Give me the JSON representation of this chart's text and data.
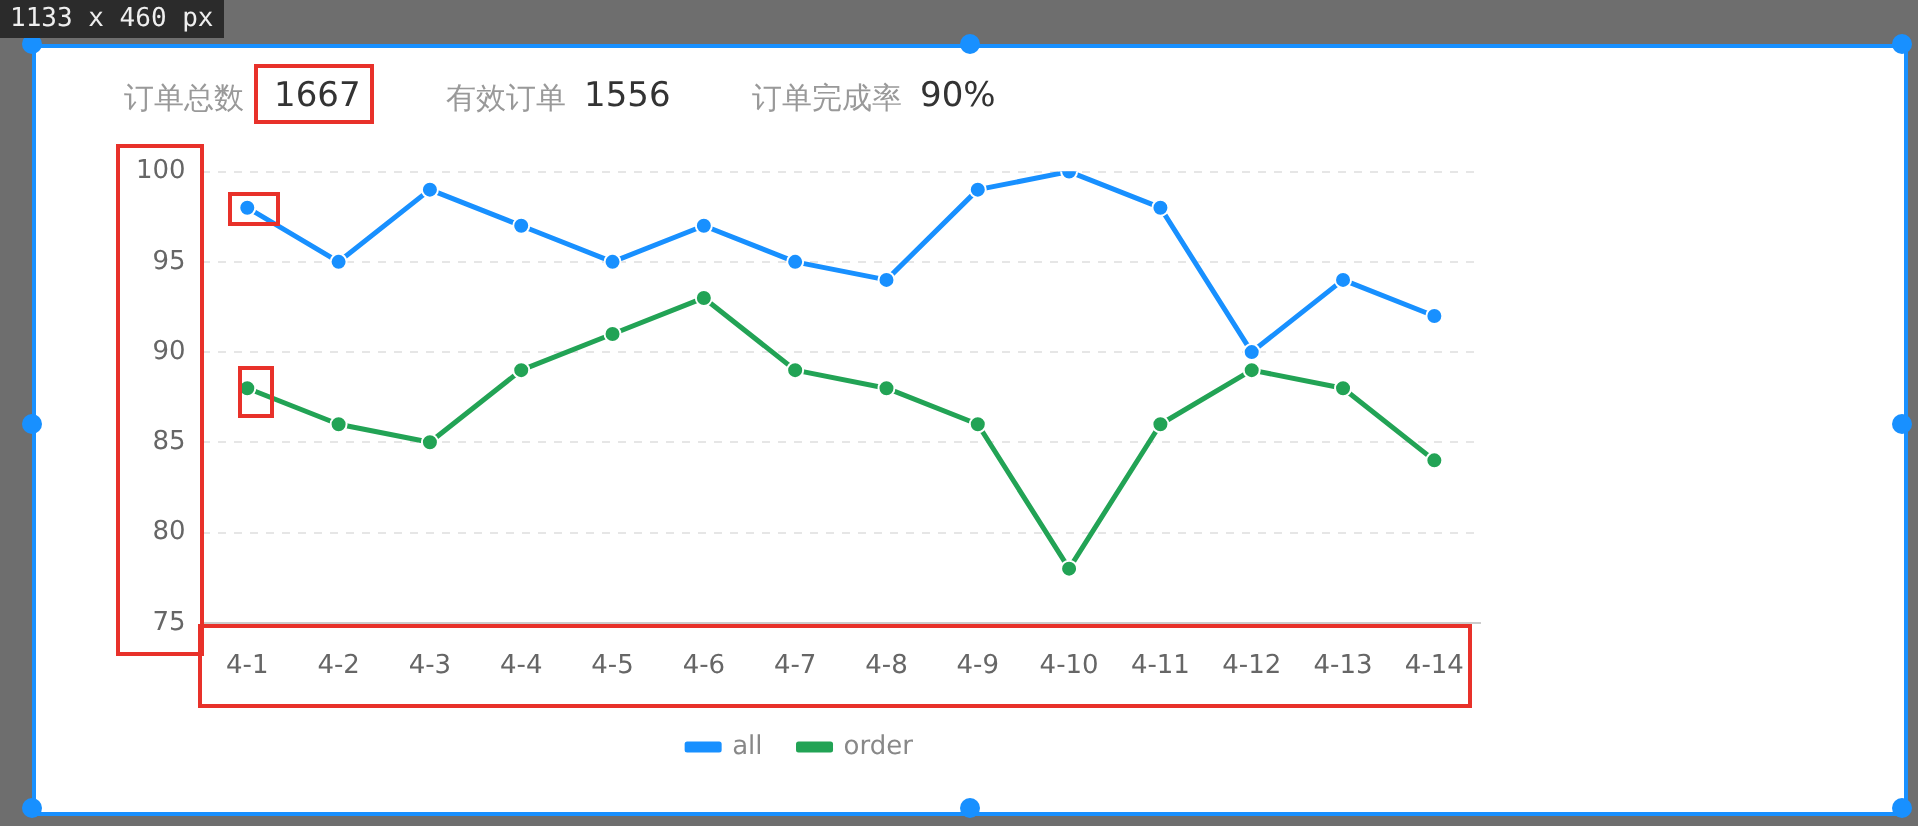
{
  "chart_data": {
    "type": "line",
    "annotations": [
      "1133 x 460 px",
      "订单总数",
      "1667",
      "有效订单",
      "1556",
      "订单完成率",
      "90%"
    ],
    "categories": [
      "4-1",
      "4-2",
      "4-3",
      "4-4",
      "4-5",
      "4-6",
      "4-7",
      "4-8",
      "4-9",
      "4-10",
      "4-11",
      "4-12",
      "4-13",
      "4-14"
    ],
    "series": [
      {
        "name": "all",
        "color": "#1890ff",
        "values": [
          98,
          95,
          99,
          97,
          95,
          97,
          95,
          94,
          99,
          100,
          98,
          90,
          94,
          92
        ]
      },
      {
        "name": "order",
        "color": "#22a355",
        "values": [
          88,
          86,
          85,
          89,
          91,
          93,
          89,
          88,
          86,
          78,
          86,
          89,
          88,
          84
        ]
      }
    ],
    "ylim": [
      75,
      100
    ],
    "yticks": [
      75,
      80,
      85,
      90,
      95,
      100
    ],
    "grid": "y",
    "legend": "bottom",
    "marker": "circle",
    "line_style": "solid"
  }
}
